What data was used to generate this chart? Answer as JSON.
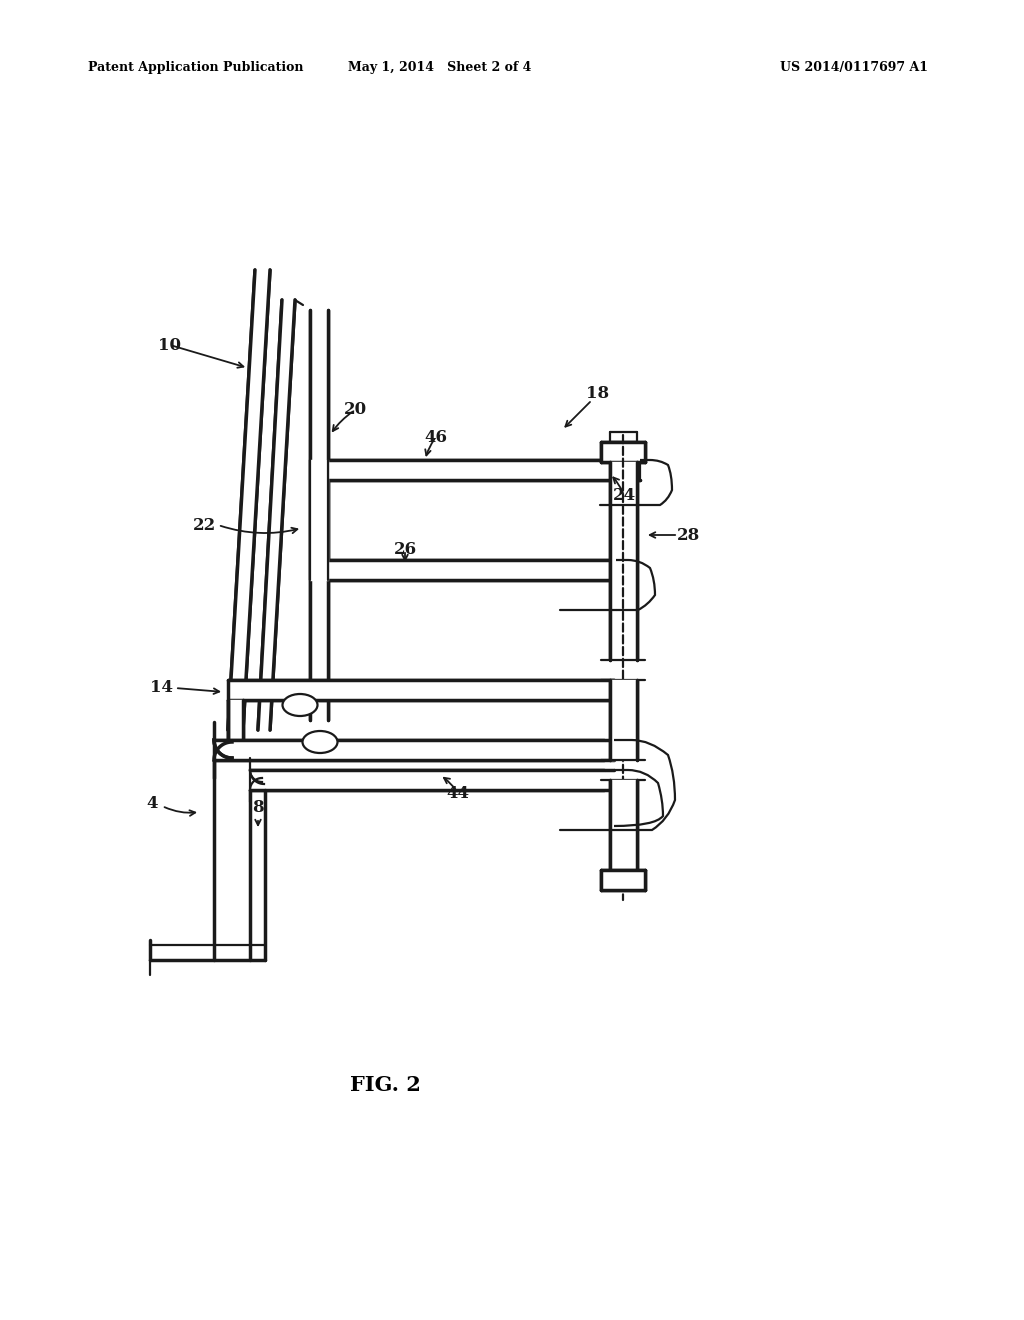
{
  "bg_color": "#ffffff",
  "lc": "#1a1a1a",
  "lw": 1.6,
  "tlw": 2.5,
  "header_left": "Patent Application Publication",
  "header_center": "May 1, 2014   Sheet 2 of 4",
  "header_right": "US 2014/0117697 A1",
  "fig_label": "FIG. 2"
}
